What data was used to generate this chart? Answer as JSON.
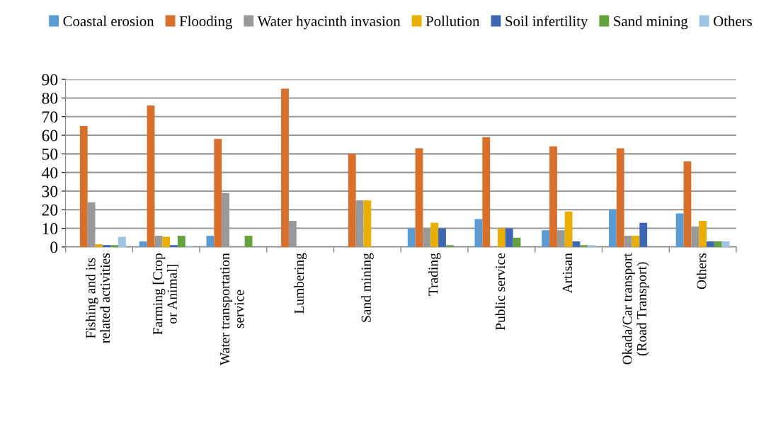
{
  "chart_data": {
    "type": "bar",
    "categories": [
      "Fishing and its related activities",
      "Farming [Crop or Animal]",
      "Water transportation service",
      "Lumbering",
      "Sand mining",
      "Trading",
      "Public service",
      "Artisan",
      "Okada/Car transport (Road Transport)",
      "Others"
    ],
    "series": [
      {
        "name": "Coastal erosion",
        "color": "#5b9bd5",
        "values": [
          0,
          3,
          6,
          0,
          0,
          10,
          15,
          9,
          20,
          18
        ]
      },
      {
        "name": "Flooding",
        "color": "#d8702c",
        "values": [
          65,
          76,
          58,
          85,
          50,
          53,
          59,
          54,
          53,
          46
        ]
      },
      {
        "name": "Water hyacinth invasion",
        "color": "#999999",
        "values": [
          24,
          6,
          29,
          14,
          25,
          10,
          0,
          9,
          6,
          11
        ]
      },
      {
        "name": "Pollution",
        "color": "#e8ae00",
        "values": [
          1.5,
          5.5,
          0,
          0,
          25,
          13,
          10,
          19,
          6,
          14
        ]
      },
      {
        "name": "Soil infertility",
        "color": "#3d66b5",
        "values": [
          1,
          1,
          0,
          0,
          0,
          10,
          10,
          3,
          13,
          3
        ]
      },
      {
        "name": "Sand mining",
        "color": "#64a23e",
        "values": [
          1,
          6,
          6,
          0,
          0,
          1,
          5,
          1,
          0,
          3
        ]
      },
      {
        "name": "Others",
        "color": "#9dc3e6",
        "values": [
          5.5,
          0.5,
          0,
          0,
          0,
          0,
          0,
          1,
          0,
          3
        ]
      }
    ],
    "ylim": [
      0,
      90
    ],
    "yticks": [
      0,
      10,
      20,
      30,
      40,
      50,
      60,
      70,
      80,
      90
    ],
    "grid": "y",
    "legend": "top"
  }
}
